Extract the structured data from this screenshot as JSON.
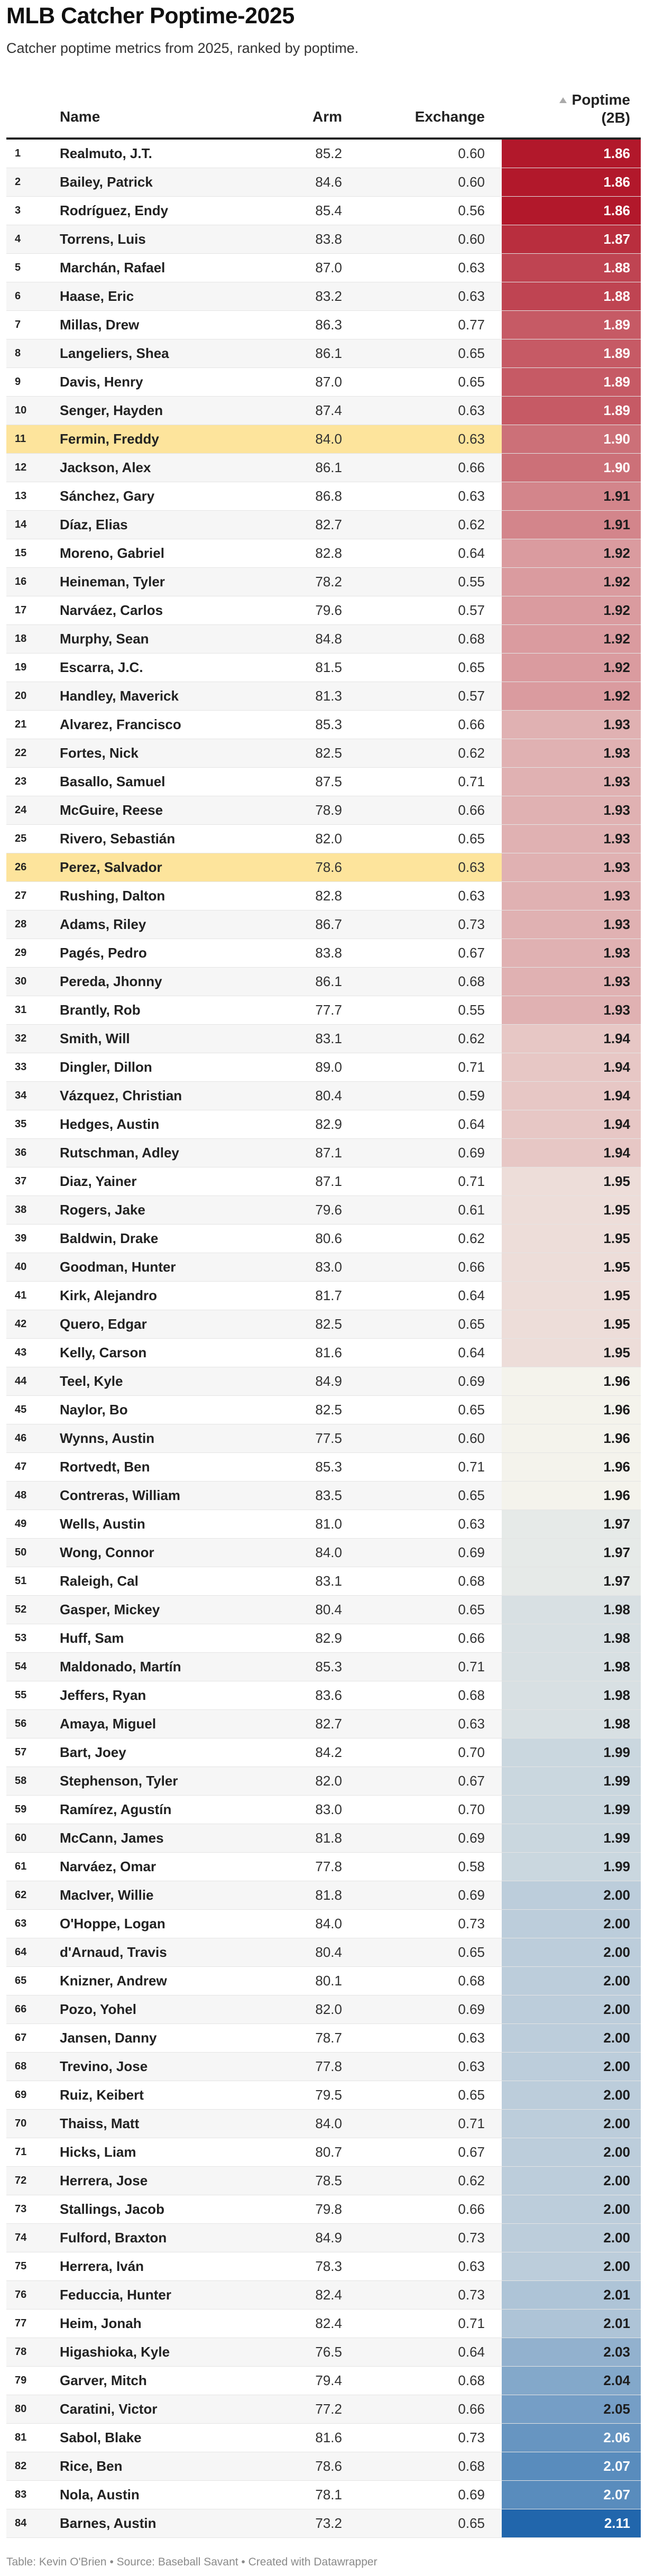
{
  "title": "MLB Catcher Poptime-2025",
  "subtitle": "Catcher poptime metrics from 2025, ranked by poptime.",
  "footer": "Table: Kevin O'Brien • Source: Baseball Savant • Created with Datawrapper",
  "sort_icon": "triangle-up-icon",
  "highlight_color": "#fde49c",
  "chart_data": {
    "type": "table",
    "columns": [
      "",
      "Name",
      "Arm",
      "Exchange",
      "Poptime (2B)"
    ],
    "poptime_header": [
      "Poptime",
      "(2B)"
    ],
    "sorted_by": "Poptime (2B)",
    "color_scale": {
      "min": 1.86,
      "mid": 1.96,
      "max": 2.11,
      "low_color": "#b2182b",
      "mid_color": "#f4f3ec",
      "high_color": "#2166ac"
    },
    "highlighted_ranks": [
      11,
      26
    ],
    "rows": [
      {
        "rank": "1",
        "name": "Realmuto, J.T.",
        "arm": "85.2",
        "exchange": "0.60",
        "poptime": "1.86"
      },
      {
        "rank": "2",
        "name": "Bailey, Patrick",
        "arm": "84.6",
        "exchange": "0.60",
        "poptime": "1.86"
      },
      {
        "rank": "3",
        "name": "Rodríguez, Endy",
        "arm": "85.4",
        "exchange": "0.56",
        "poptime": "1.86"
      },
      {
        "rank": "4",
        "name": "Torrens, Luis",
        "arm": "83.8",
        "exchange": "0.60",
        "poptime": "1.87"
      },
      {
        "rank": "5",
        "name": "Marchán, Rafael",
        "arm": "87.0",
        "exchange": "0.63",
        "poptime": "1.88"
      },
      {
        "rank": "6",
        "name": "Haase, Eric",
        "arm": "83.2",
        "exchange": "0.63",
        "poptime": "1.88"
      },
      {
        "rank": "7",
        "name": "Millas, Drew",
        "arm": "86.3",
        "exchange": "0.77",
        "poptime": "1.89"
      },
      {
        "rank": "8",
        "name": "Langeliers, Shea",
        "arm": "86.1",
        "exchange": "0.65",
        "poptime": "1.89"
      },
      {
        "rank": "9",
        "name": "Davis, Henry",
        "arm": "87.0",
        "exchange": "0.65",
        "poptime": "1.89"
      },
      {
        "rank": "10",
        "name": "Senger, Hayden",
        "arm": "87.4",
        "exchange": "0.63",
        "poptime": "1.89"
      },
      {
        "rank": "11",
        "name": "Fermin, Freddy",
        "arm": "84.0",
        "exchange": "0.63",
        "poptime": "1.90"
      },
      {
        "rank": "12",
        "name": "Jackson, Alex",
        "arm": "86.1",
        "exchange": "0.66",
        "poptime": "1.90"
      },
      {
        "rank": "13",
        "name": "Sánchez, Gary",
        "arm": "86.8",
        "exchange": "0.63",
        "poptime": "1.91"
      },
      {
        "rank": "14",
        "name": "Díaz, Elias",
        "arm": "82.7",
        "exchange": "0.62",
        "poptime": "1.91"
      },
      {
        "rank": "15",
        "name": "Moreno, Gabriel",
        "arm": "82.8",
        "exchange": "0.64",
        "poptime": "1.92"
      },
      {
        "rank": "16",
        "name": "Heineman, Tyler",
        "arm": "78.2",
        "exchange": "0.55",
        "poptime": "1.92"
      },
      {
        "rank": "17",
        "name": "Narváez, Carlos",
        "arm": "79.6",
        "exchange": "0.57",
        "poptime": "1.92"
      },
      {
        "rank": "18",
        "name": "Murphy, Sean",
        "arm": "84.8",
        "exchange": "0.68",
        "poptime": "1.92"
      },
      {
        "rank": "19",
        "name": "Escarra, J.C.",
        "arm": "81.5",
        "exchange": "0.65",
        "poptime": "1.92"
      },
      {
        "rank": "20",
        "name": "Handley, Maverick",
        "arm": "81.3",
        "exchange": "0.57",
        "poptime": "1.92"
      },
      {
        "rank": "21",
        "name": "Alvarez, Francisco",
        "arm": "85.3",
        "exchange": "0.66",
        "poptime": "1.93"
      },
      {
        "rank": "22",
        "name": "Fortes, Nick",
        "arm": "82.5",
        "exchange": "0.62",
        "poptime": "1.93"
      },
      {
        "rank": "23",
        "name": "Basallo, Samuel",
        "arm": "87.5",
        "exchange": "0.71",
        "poptime": "1.93"
      },
      {
        "rank": "24",
        "name": "McGuire, Reese",
        "arm": "78.9",
        "exchange": "0.66",
        "poptime": "1.93"
      },
      {
        "rank": "25",
        "name": "Rivero, Sebastián",
        "arm": "82.0",
        "exchange": "0.65",
        "poptime": "1.93"
      },
      {
        "rank": "26",
        "name": "Perez, Salvador",
        "arm": "78.6",
        "exchange": "0.63",
        "poptime": "1.93"
      },
      {
        "rank": "27",
        "name": "Rushing, Dalton",
        "arm": "82.8",
        "exchange": "0.63",
        "poptime": "1.93"
      },
      {
        "rank": "28",
        "name": "Adams, Riley",
        "arm": "86.7",
        "exchange": "0.73",
        "poptime": "1.93"
      },
      {
        "rank": "29",
        "name": "Pagés, Pedro",
        "arm": "83.8",
        "exchange": "0.67",
        "poptime": "1.93"
      },
      {
        "rank": "30",
        "name": "Pereda, Jhonny",
        "arm": "86.1",
        "exchange": "0.68",
        "poptime": "1.93"
      },
      {
        "rank": "31",
        "name": "Brantly, Rob",
        "arm": "77.7",
        "exchange": "0.55",
        "poptime": "1.93"
      },
      {
        "rank": "32",
        "name": "Smith, Will",
        "arm": "83.1",
        "exchange": "0.62",
        "poptime": "1.94"
      },
      {
        "rank": "33",
        "name": "Dingler, Dillon",
        "arm": "89.0",
        "exchange": "0.71",
        "poptime": "1.94"
      },
      {
        "rank": "34",
        "name": "Vázquez, Christian",
        "arm": "80.4",
        "exchange": "0.59",
        "poptime": "1.94"
      },
      {
        "rank": "35",
        "name": "Hedges, Austin",
        "arm": "82.9",
        "exchange": "0.64",
        "poptime": "1.94"
      },
      {
        "rank": "36",
        "name": "Rutschman, Adley",
        "arm": "87.1",
        "exchange": "0.69",
        "poptime": "1.94"
      },
      {
        "rank": "37",
        "name": "Diaz, Yainer",
        "arm": "87.1",
        "exchange": "0.71",
        "poptime": "1.95"
      },
      {
        "rank": "38",
        "name": "Rogers, Jake",
        "arm": "79.6",
        "exchange": "0.61",
        "poptime": "1.95"
      },
      {
        "rank": "39",
        "name": "Baldwin, Drake",
        "arm": "80.6",
        "exchange": "0.62",
        "poptime": "1.95"
      },
      {
        "rank": "40",
        "name": "Goodman, Hunter",
        "arm": "83.0",
        "exchange": "0.66",
        "poptime": "1.95"
      },
      {
        "rank": "41",
        "name": "Kirk, Alejandro",
        "arm": "81.7",
        "exchange": "0.64",
        "poptime": "1.95"
      },
      {
        "rank": "42",
        "name": "Quero, Edgar",
        "arm": "82.5",
        "exchange": "0.65",
        "poptime": "1.95"
      },
      {
        "rank": "43",
        "name": "Kelly, Carson",
        "arm": "81.6",
        "exchange": "0.64",
        "poptime": "1.95"
      },
      {
        "rank": "44",
        "name": "Teel, Kyle",
        "arm": "84.9",
        "exchange": "0.69",
        "poptime": "1.96"
      },
      {
        "rank": "45",
        "name": "Naylor, Bo",
        "arm": "82.5",
        "exchange": "0.65",
        "poptime": "1.96"
      },
      {
        "rank": "46",
        "name": "Wynns, Austin",
        "arm": "77.5",
        "exchange": "0.60",
        "poptime": "1.96"
      },
      {
        "rank": "47",
        "name": "Rortvedt, Ben",
        "arm": "85.3",
        "exchange": "0.71",
        "poptime": "1.96"
      },
      {
        "rank": "48",
        "name": "Contreras, William",
        "arm": "83.5",
        "exchange": "0.65",
        "poptime": "1.96"
      },
      {
        "rank": "49",
        "name": "Wells, Austin",
        "arm": "81.0",
        "exchange": "0.63",
        "poptime": "1.97"
      },
      {
        "rank": "50",
        "name": "Wong, Connor",
        "arm": "84.0",
        "exchange": "0.69",
        "poptime": "1.97"
      },
      {
        "rank": "51",
        "name": "Raleigh, Cal",
        "arm": "83.1",
        "exchange": "0.68",
        "poptime": "1.97"
      },
      {
        "rank": "52",
        "name": "Gasper, Mickey",
        "arm": "80.4",
        "exchange": "0.65",
        "poptime": "1.98"
      },
      {
        "rank": "53",
        "name": "Huff, Sam",
        "arm": "82.9",
        "exchange": "0.66",
        "poptime": "1.98"
      },
      {
        "rank": "54",
        "name": "Maldonado, Martín",
        "arm": "85.3",
        "exchange": "0.71",
        "poptime": "1.98"
      },
      {
        "rank": "55",
        "name": "Jeffers, Ryan",
        "arm": "83.6",
        "exchange": "0.68",
        "poptime": "1.98"
      },
      {
        "rank": "56",
        "name": "Amaya, Miguel",
        "arm": "82.7",
        "exchange": "0.63",
        "poptime": "1.98"
      },
      {
        "rank": "57",
        "name": "Bart, Joey",
        "arm": "84.2",
        "exchange": "0.70",
        "poptime": "1.99"
      },
      {
        "rank": "58",
        "name": "Stephenson, Tyler",
        "arm": "82.0",
        "exchange": "0.67",
        "poptime": "1.99"
      },
      {
        "rank": "59",
        "name": "Ramírez, Agustín",
        "arm": "83.0",
        "exchange": "0.70",
        "poptime": "1.99"
      },
      {
        "rank": "60",
        "name": "McCann, James",
        "arm": "81.8",
        "exchange": "0.69",
        "poptime": "1.99"
      },
      {
        "rank": "61",
        "name": "Narváez, Omar",
        "arm": "77.8",
        "exchange": "0.58",
        "poptime": "1.99"
      },
      {
        "rank": "62",
        "name": "MacIver, Willie",
        "arm": "81.8",
        "exchange": "0.69",
        "poptime": "2.00"
      },
      {
        "rank": "63",
        "name": "O'Hoppe, Logan",
        "arm": "84.0",
        "exchange": "0.73",
        "poptime": "2.00"
      },
      {
        "rank": "64",
        "name": "d'Arnaud, Travis",
        "arm": "80.4",
        "exchange": "0.65",
        "poptime": "2.00"
      },
      {
        "rank": "65",
        "name": "Knizner, Andrew",
        "arm": "80.1",
        "exchange": "0.68",
        "poptime": "2.00"
      },
      {
        "rank": "66",
        "name": "Pozo, Yohel",
        "arm": "82.0",
        "exchange": "0.69",
        "poptime": "2.00"
      },
      {
        "rank": "67",
        "name": "Jansen, Danny",
        "arm": "78.7",
        "exchange": "0.63",
        "poptime": "2.00"
      },
      {
        "rank": "68",
        "name": "Trevino, Jose",
        "arm": "77.8",
        "exchange": "0.63",
        "poptime": "2.00"
      },
      {
        "rank": "69",
        "name": "Ruiz, Keibert",
        "arm": "79.5",
        "exchange": "0.65",
        "poptime": "2.00"
      },
      {
        "rank": "70",
        "name": "Thaiss, Matt",
        "arm": "84.0",
        "exchange": "0.71",
        "poptime": "2.00"
      },
      {
        "rank": "71",
        "name": "Hicks, Liam",
        "arm": "80.7",
        "exchange": "0.67",
        "poptime": "2.00"
      },
      {
        "rank": "72",
        "name": "Herrera, Jose",
        "arm": "78.5",
        "exchange": "0.62",
        "poptime": "2.00"
      },
      {
        "rank": "73",
        "name": "Stallings, Jacob",
        "arm": "79.8",
        "exchange": "0.66",
        "poptime": "2.00"
      },
      {
        "rank": "74",
        "name": "Fulford, Braxton",
        "arm": "84.9",
        "exchange": "0.73",
        "poptime": "2.00"
      },
      {
        "rank": "75",
        "name": "Herrera, Iván",
        "arm": "78.3",
        "exchange": "0.63",
        "poptime": "2.00"
      },
      {
        "rank": "76",
        "name": "Feduccia, Hunter",
        "arm": "82.4",
        "exchange": "0.73",
        "poptime": "2.01"
      },
      {
        "rank": "77",
        "name": "Heim, Jonah",
        "arm": "82.4",
        "exchange": "0.71",
        "poptime": "2.01"
      },
      {
        "rank": "78",
        "name": "Higashioka, Kyle",
        "arm": "76.5",
        "exchange": "0.64",
        "poptime": "2.03"
      },
      {
        "rank": "79",
        "name": "Garver, Mitch",
        "arm": "79.4",
        "exchange": "0.68",
        "poptime": "2.04"
      },
      {
        "rank": "80",
        "name": "Caratini, Victor",
        "arm": "77.2",
        "exchange": "0.66",
        "poptime": "2.05"
      },
      {
        "rank": "81",
        "name": "Sabol, Blake",
        "arm": "81.6",
        "exchange": "0.73",
        "poptime": "2.06"
      },
      {
        "rank": "82",
        "name": "Rice, Ben",
        "arm": "78.6",
        "exchange": "0.68",
        "poptime": "2.07"
      },
      {
        "rank": "83",
        "name": "Nola, Austin",
        "arm": "78.1",
        "exchange": "0.69",
        "poptime": "2.07"
      },
      {
        "rank": "84",
        "name": "Barnes, Austin",
        "arm": "73.2",
        "exchange": "0.65",
        "poptime": "2.11"
      }
    ]
  }
}
